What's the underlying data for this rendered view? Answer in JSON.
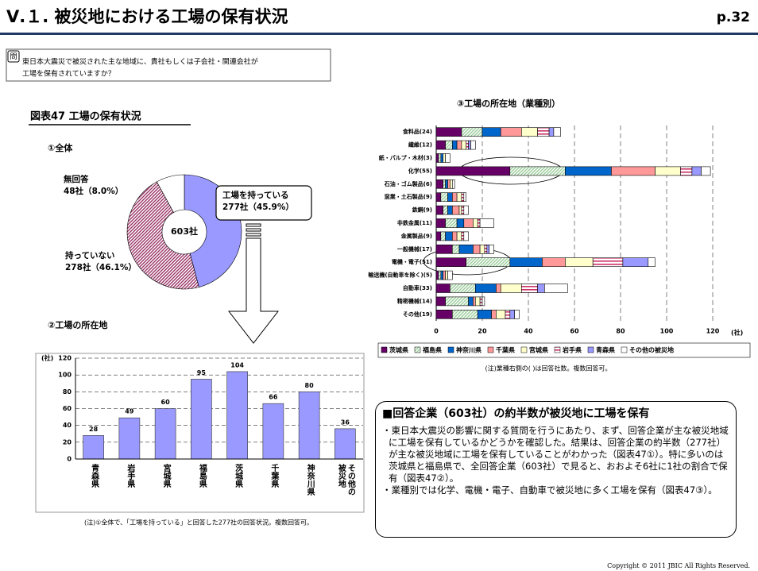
{
  "header": {
    "title": "Ⅴ.１. 被災地における工場の保有状況",
    "page": "p.32"
  },
  "question": {
    "icon": "問",
    "lines": [
      "東日本大震災で被災された主な地域に、貴社もしくは子会社・関連会社が",
      "工場を保有されていますか？"
    ]
  },
  "figure_title": "図表47 工場の保有状況",
  "chart_data": [
    {
      "type": "pie",
      "subtitle": "①全体",
      "center_label": "603社",
      "categories": [
        "工場を持っている",
        "持っていない",
        "無回答"
      ],
      "values": [
        45.9,
        46.1,
        8.0
      ],
      "value_labels": [
        "277社（45.9%）",
        "278社（46.1%）",
        "48社（8.0%）"
      ],
      "colors": [
        "#9999ff",
        "#993366",
        "#ffffff"
      ],
      "fills": [
        "solid",
        "diagonal",
        "solid"
      ]
    },
    {
      "type": "bar",
      "subtitle": "②工場の所在地",
      "y_label": "(社)",
      "categories": [
        "青森県",
        "岩手県",
        "宮城県",
        "福島県",
        "茨城県",
        "千葉県",
        "神奈川県",
        "その他の被災地"
      ],
      "values": [
        28,
        49,
        60,
        95,
        104,
        66,
        80,
        36
      ],
      "color": "#9999ff",
      "ylim": [
        0,
        120
      ],
      "yticks": [
        0,
        20,
        40,
        60,
        80,
        100,
        120
      ],
      "grid": true,
      "note": "(注)①全体で、「工場を持っている」と回答した277社の回答状況。複数回答可。"
    },
    {
      "type": "stacked_hbar",
      "subtitle": "③工場の所在地（業種別）",
      "x_label": "(社)",
      "categories": [
        "食料品(24)",
        "繊維(12)",
        "紙・パルプ・木材(3)",
        "化学(55)",
        "石油・ゴム製品(6)",
        "窯業・土石製品(9)",
        "鉄鋼(9)",
        "非鉄金属(11)",
        "金属製品(9)",
        "一般機械(17)",
        "電機・電子(51)",
        "輸送機(自動車を除く)(5)",
        "自動車(33)",
        "精密機械(14)",
        "その他(19)"
      ],
      "series": [
        {
          "name": "茨城県",
          "color": "#660066",
          "fill": "solid",
          "values": [
            11,
            4,
            1,
            32,
            3,
            2,
            3,
            4,
            2,
            7,
            13,
            1,
            6,
            4,
            7
          ]
        },
        {
          "name": "福島県",
          "color": "#99cc99",
          "fill": "diagonal",
          "values": [
            9,
            3,
            1,
            24,
            1,
            3,
            2,
            5,
            2,
            3,
            19,
            1,
            11,
            10,
            11
          ]
        },
        {
          "name": "神奈川県",
          "color": "#0066cc",
          "fill": "solid",
          "values": [
            8,
            2,
            1,
            20,
            1,
            2,
            2,
            3,
            3,
            6,
            14,
            1,
            9,
            2,
            6
          ]
        },
        {
          "name": "千葉県",
          "color": "#ff9999",
          "fill": "solid",
          "values": [
            9,
            2,
            0,
            19,
            1,
            2,
            3,
            4,
            2,
            3,
            10,
            1,
            2,
            1,
            2
          ]
        },
        {
          "name": "宮城県",
          "color": "#ffffcc",
          "fill": "solid",
          "values": [
            7,
            2,
            1,
            11,
            1,
            2,
            1,
            2,
            2,
            2,
            12,
            1,
            9,
            2,
            4
          ]
        },
        {
          "name": "岩手県",
          "color": "#cc3366",
          "fill": "horizontal",
          "values": [
            5,
            1,
            0,
            5,
            0,
            1,
            1,
            1,
            1,
            1,
            13,
            0,
            7,
            1,
            2
          ]
        },
        {
          "name": "青森県",
          "color": "#9999ff",
          "fill": "solid",
          "values": [
            2,
            1,
            0,
            4,
            0,
            0,
            0,
            0,
            0,
            1,
            11,
            0,
            3,
            0,
            2
          ]
        },
        {
          "name": "その他の被災地",
          "color": "#ffffff",
          "fill": "solid",
          "values": [
            3,
            2,
            2,
            4,
            1,
            1,
            2,
            6,
            2,
            2,
            3,
            2,
            10,
            1,
            2
          ]
        }
      ],
      "xlim": [
        0,
        120
      ],
      "xticks": [
        0,
        20,
        40,
        60,
        80,
        100,
        120
      ],
      "grid": true,
      "legend": "bottom",
      "note": "(注)業種右側の( )は回答社数。複数回答可。"
    }
  ],
  "summary": {
    "title": "■回答企業（603社）の約半数が被災地に工場を保有",
    "bullets": [
      "・東日本大震災の影響に関する質問を行うにあたり、まず、回答企業が主な被災地域に工場を保有しているかどうかを確認した。結果は、回答企業の約半数（277社）が主な被災地域に工場を保有していることがわかった（図表47①）。特に多いのは茨城県と福島県で、全回答企業（603社）で見ると、おおよそ6社に1社の割合で保有（図表47②）。",
      "・業種別では化学、電機・電子、自動車で被災地に多く工場を保有（図表47③）。"
    ]
  },
  "copyright": "Copyright © 2011 JBIC All Rights Reserved."
}
